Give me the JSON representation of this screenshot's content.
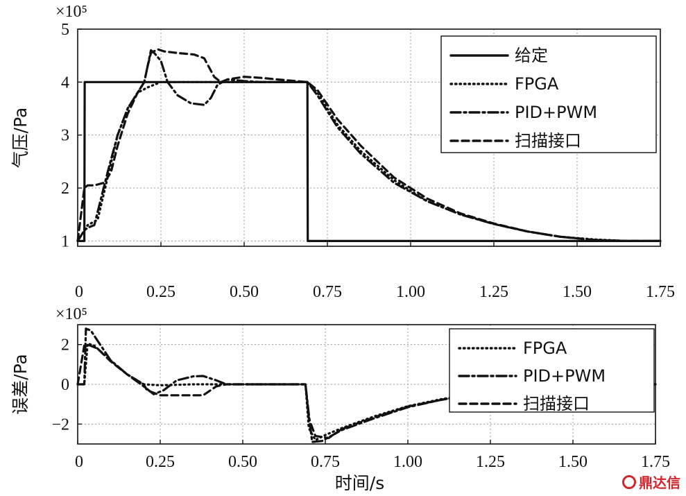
{
  "chart_data": [
    {
      "type": "line",
      "title": "",
      "xlabel": "",
      "ylabel": "气压/Pa",
      "y_multiplier": "×10⁵",
      "xlim": [
        0,
        1.75
      ],
      "ylim": [
        0.9,
        5.0
      ],
      "xticks": [
        "0",
        "0.25",
        "0.50",
        "0.75",
        "1.00",
        "1.25",
        "1.50",
        "1.75"
      ],
      "yticks": [
        "1",
        "2",
        "3",
        "4",
        "5"
      ],
      "grid": true,
      "legend_position": "top-right",
      "series": [
        {
          "name": "给定",
          "style": "solid",
          "x": [
            0,
            0.02,
            0.021,
            0.69,
            0.691,
            1.75
          ],
          "y": [
            1,
            1,
            4,
            4,
            1,
            1
          ]
        },
        {
          "name": "FPGA",
          "style": "dotted",
          "x": [
            0,
            0.02,
            0.03,
            0.06,
            0.09,
            0.12,
            0.15,
            0.18,
            0.21,
            0.25,
            0.35,
            0.5,
            0.69,
            0.72,
            0.78,
            0.85,
            0.95,
            1.05,
            1.15,
            1.25,
            1.35,
            1.45,
            1.55,
            1.65,
            1.75
          ],
          "y": [
            1,
            1.2,
            1.3,
            1.4,
            2.2,
            3.0,
            3.5,
            3.8,
            3.9,
            4.0,
            4.0,
            4.0,
            4.0,
            3.8,
            3.2,
            2.7,
            2.15,
            1.75,
            1.5,
            1.32,
            1.18,
            1.08,
            1.03,
            1.0,
            1.0
          ]
        },
        {
          "name": "PID+PWM",
          "style": "dashdot",
          "x": [
            0,
            0.02,
            0.03,
            0.05,
            0.07,
            0.09,
            0.12,
            0.15,
            0.18,
            0.2,
            0.21,
            0.22,
            0.23,
            0.25,
            0.27,
            0.3,
            0.34,
            0.38,
            0.4,
            0.42,
            0.45,
            0.5,
            0.55,
            0.6,
            0.69,
            0.72,
            0.78,
            0.85,
            0.95,
            1.05,
            1.15,
            1.25,
            1.35,
            1.45,
            1.55,
            1.65,
            1.75
          ],
          "y": [
            1,
            1.2,
            1.25,
            1.3,
            1.8,
            2.3,
            3.0,
            3.5,
            3.8,
            4.0,
            4.3,
            4.6,
            4.55,
            4.4,
            4.0,
            3.75,
            3.6,
            3.57,
            3.7,
            3.95,
            4.05,
            4.02,
            4.0,
            4.0,
            4.0,
            3.75,
            3.15,
            2.65,
            2.1,
            1.75,
            1.5,
            1.32,
            1.18,
            1.08,
            1.02,
            1.0,
            1.0
          ]
        },
        {
          "name": "扫描接口",
          "style": "dashed",
          "x": [
            0,
            0.02,
            0.03,
            0.05,
            0.08,
            0.1,
            0.12,
            0.15,
            0.18,
            0.2,
            0.21,
            0.22,
            0.24,
            0.26,
            0.3,
            0.35,
            0.38,
            0.41,
            0.43,
            0.45,
            0.5,
            0.55,
            0.6,
            0.69,
            0.72,
            0.78,
            0.85,
            0.95,
            1.05,
            1.15,
            1.25,
            1.35,
            1.45,
            1.55,
            1.65,
            1.75
          ],
          "y": [
            1,
            2.0,
            2.05,
            2.05,
            2.1,
            2.3,
            2.8,
            3.4,
            3.8,
            4.0,
            4.3,
            4.55,
            4.62,
            4.58,
            4.55,
            4.52,
            4.45,
            4.1,
            4.0,
            4.05,
            4.1,
            4.08,
            4.05,
            4.0,
            3.85,
            3.3,
            2.8,
            2.2,
            1.8,
            1.52,
            1.33,
            1.18,
            1.08,
            1.02,
            1.0,
            1.0
          ]
        }
      ]
    },
    {
      "type": "line",
      "title": "",
      "xlabel": "时间/s",
      "ylabel": "误差/Pa",
      "y_multiplier": "×10⁵",
      "xlim": [
        0,
        1.75
      ],
      "ylim": [
        -3.0,
        3.0
      ],
      "xticks": [
        "0",
        "0.25",
        "0.50",
        "0.75",
        "1.00",
        "1.25",
        "1.50",
        "1.75"
      ],
      "yticks": [
        "2",
        "0",
        "−2"
      ],
      "grid": true,
      "legend_position": "right",
      "series": [
        {
          "name": "FPGA",
          "style": "dotted",
          "x": [
            0,
            0.02,
            0.03,
            0.05,
            0.1,
            0.15,
            0.2,
            0.25,
            0.35,
            0.5,
            0.69,
            0.7,
            0.72,
            0.75,
            0.8,
            0.9,
            1.0,
            1.1,
            1.2,
            1.3,
            1.4,
            1.5,
            1.6,
            1.75
          ],
          "y": [
            0,
            0,
            2.05,
            1.95,
            1.2,
            0.5,
            0.0,
            -0.05,
            0.0,
            0.0,
            0.0,
            -2.2,
            -2.8,
            -2.55,
            -2.2,
            -1.6,
            -1.1,
            -0.75,
            -0.5,
            -0.32,
            -0.18,
            -0.08,
            -0.03,
            0
          ]
        },
        {
          "name": "PID+PWM",
          "style": "dashdot",
          "x": [
            0,
            0.02,
            0.025,
            0.04,
            0.1,
            0.15,
            0.2,
            0.23,
            0.26,
            0.3,
            0.35,
            0.38,
            0.42,
            0.45,
            0.5,
            0.69,
            0.7,
            0.71,
            0.74,
            0.8,
            0.9,
            1.0,
            1.1,
            1.2,
            1.3,
            1.4,
            1.5,
            1.6,
            1.75
          ],
          "y": [
            0,
            0,
            2.8,
            2.7,
            1.2,
            0.5,
            -0.1,
            -0.5,
            -0.3,
            0.2,
            0.4,
            0.42,
            0.2,
            0.0,
            0.0,
            0.0,
            -1.5,
            -2.9,
            -2.85,
            -2.3,
            -1.7,
            -1.15,
            -0.78,
            -0.52,
            -0.33,
            -0.19,
            -0.09,
            -0.03,
            0
          ]
        },
        {
          "name": "扫描接口",
          "style": "dashed",
          "x": [
            0,
            0.02,
            0.03,
            0.06,
            0.1,
            0.15,
            0.2,
            0.21,
            0.25,
            0.3,
            0.38,
            0.42,
            0.45,
            0.5,
            0.69,
            0.7,
            0.72,
            0.76,
            0.8,
            0.9,
            1.0,
            1.1,
            1.2,
            1.3,
            1.4,
            1.5,
            1.6,
            1.75
          ],
          "y": [
            0,
            1.95,
            2.0,
            1.8,
            1.15,
            0.5,
            0.0,
            -0.3,
            -0.55,
            -0.55,
            -0.55,
            -0.1,
            0.0,
            0.0,
            0.0,
            -1.7,
            -2.6,
            -2.7,
            -2.25,
            -1.65,
            -1.12,
            -0.78,
            -0.5,
            -0.32,
            -0.18,
            -0.08,
            -0.03,
            0
          ]
        }
      ]
    }
  ],
  "watermark": {
    "text": "鼎达信",
    "color": "#d1242b"
  }
}
